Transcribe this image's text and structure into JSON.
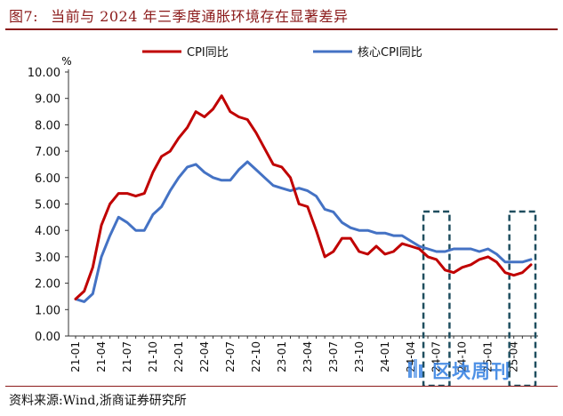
{
  "figure": {
    "number": "图7:",
    "title": "当前与 2024 年三季度通胀环境存在显著差异",
    "source": "资料来源:Wind,浙商证券研究所",
    "watermark": "区块周刊"
  },
  "colors": {
    "title": "#8b1a1a",
    "cpi": "#c00000",
    "core_cpi": "#4472c4",
    "highlight_box": "#1f4e5f",
    "watermark": "#2f7de1"
  },
  "chart_data": {
    "type": "line",
    "ylabel": "%",
    "ylim": [
      0,
      10
    ],
    "yticks": [
      "0.00",
      "1.00",
      "2.00",
      "3.00",
      "4.00",
      "5.00",
      "6.00",
      "7.00",
      "8.00",
      "9.00",
      "10.00"
    ],
    "x_tick_labels": [
      "21-01",
      "21-04",
      "21-07",
      "21-10",
      "22-01",
      "22-04",
      "22-07",
      "22-10",
      "23-01",
      "23-04",
      "23-07",
      "23-10",
      "24-01",
      "24-04",
      "24-07",
      "24-10",
      "25-01",
      "25-04"
    ],
    "x_tick_indices": [
      0,
      3,
      6,
      9,
      12,
      15,
      18,
      21,
      24,
      27,
      30,
      33,
      36,
      39,
      42,
      45,
      48,
      51
    ],
    "months": [
      "21-01",
      "21-02",
      "21-03",
      "21-04",
      "21-05",
      "21-06",
      "21-07",
      "21-08",
      "21-09",
      "21-10",
      "21-11",
      "21-12",
      "22-01",
      "22-02",
      "22-03",
      "22-04",
      "22-05",
      "22-06",
      "22-07",
      "22-08",
      "22-09",
      "22-10",
      "22-11",
      "22-12",
      "23-01",
      "23-02",
      "23-03",
      "23-04",
      "23-05",
      "23-06",
      "23-07",
      "23-08",
      "23-09",
      "23-10",
      "23-11",
      "23-12",
      "24-01",
      "24-02",
      "24-03",
      "24-04",
      "24-05",
      "24-06",
      "24-07",
      "24-08",
      "24-09",
      "24-10",
      "24-11",
      "24-12",
      "25-01",
      "25-02",
      "25-03",
      "25-04",
      "25-05",
      "25-06"
    ],
    "legend_position": "top",
    "series": [
      {
        "name": "CPI同比",
        "values": [
          1.4,
          1.7,
          2.6,
          4.2,
          5.0,
          5.4,
          5.4,
          5.3,
          5.4,
          6.2,
          6.8,
          7.0,
          7.5,
          7.9,
          8.5,
          8.3,
          8.6,
          9.1,
          8.5,
          8.3,
          8.2,
          7.7,
          7.1,
          6.5,
          6.4,
          6.0,
          5.0,
          4.9,
          4.0,
          3.0,
          3.2,
          3.7,
          3.7,
          3.2,
          3.1,
          3.4,
          3.1,
          3.2,
          3.5,
          3.4,
          3.3,
          3.0,
          2.9,
          2.5,
          2.4,
          2.6,
          2.7,
          2.9,
          3.0,
          2.8,
          2.4,
          2.3,
          2.4,
          2.7
        ]
      },
      {
        "name": "核心CPI同比",
        "values": [
          1.4,
          1.3,
          1.6,
          3.0,
          3.8,
          4.5,
          4.3,
          4.0,
          4.0,
          4.6,
          4.9,
          5.5,
          6.0,
          6.4,
          6.5,
          6.2,
          6.0,
          5.9,
          5.9,
          6.3,
          6.6,
          6.3,
          6.0,
          5.7,
          5.6,
          5.5,
          5.6,
          5.5,
          5.3,
          4.8,
          4.7,
          4.3,
          4.1,
          4.0,
          4.0,
          3.9,
          3.9,
          3.8,
          3.8,
          3.6,
          3.4,
          3.3,
          3.2,
          3.2,
          3.3,
          3.3,
          3.3,
          3.2,
          3.3,
          3.1,
          2.8,
          2.8,
          2.8,
          2.9
        ]
      }
    ],
    "highlights": [
      {
        "from": "24-06",
        "to": "24-08"
      },
      {
        "from": "25-04",
        "to": "25-06"
      }
    ]
  }
}
